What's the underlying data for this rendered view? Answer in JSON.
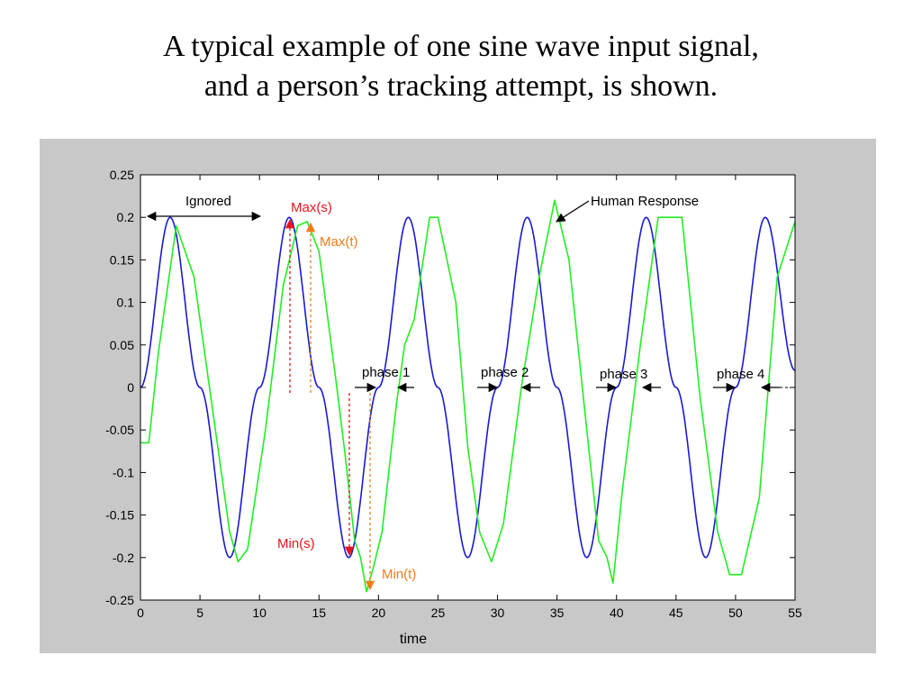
{
  "slide": {
    "title_line1": "A typical example of one sine wave input signal,",
    "title_line2": "and a person’s tracking attempt, is shown."
  },
  "colors": {
    "panel_bg": "#c8c8c8",
    "axes_bg": "#ffffff",
    "signal": "#1a1ad0",
    "response": "#22ee22",
    "red_annotation": "#e8141c",
    "orange_annotation": "#f07c18"
  },
  "chart_data": {
    "type": "line",
    "title": "",
    "xlabel": "time",
    "ylabel": "",
    "xlim": [
      0,
      55
    ],
    "ylim": [
      -0.25,
      0.25
    ],
    "grid": false,
    "x_ticks": [
      0,
      5,
      10,
      15,
      20,
      25,
      30,
      35,
      40,
      45,
      50,
      55
    ],
    "x_tick_labels": [
      "0",
      "5",
      "10",
      "15",
      "20",
      "25",
      "30",
      "35",
      "40",
      "45",
      "50",
      "55"
    ],
    "y_ticks": [
      0.25,
      0.2,
      0.15,
      0.1,
      0.05,
      0,
      -0.05,
      -0.1,
      -0.15,
      -0.2,
      -0.25
    ],
    "y_tick_labels": [
      "0.25",
      "0.2",
      "0.15",
      "0.1",
      "0.05",
      "0",
      "-0.05",
      "-0.1",
      "-0.15",
      "-0.2",
      "-0.25"
    ],
    "series": [
      {
        "color": "#1a1ad0",
        "x": [
          0,
          2.5,
          5,
          7.5,
          10,
          12.5,
          15,
          17.5,
          20,
          22.5,
          25,
          27.5,
          30,
          32.5,
          35,
          37.5,
          40,
          42.5,
          45,
          47.5,
          50,
          52.5,
          55
        ],
        "y": [
          0,
          0.2,
          0,
          -0.2,
          0,
          0.2,
          0,
          -0.2,
          0,
          0.2,
          0,
          -0.2,
          0,
          0.2,
          0,
          -0.2,
          0,
          0.2,
          0,
          -0.2,
          0,
          0.2,
          0.02
        ]
      },
      {
        "color": "#22ee22",
        "x": [
          0,
          0.7,
          1.5,
          3,
          4.5,
          6,
          7.5,
          8.2,
          9,
          10.5,
          12,
          13.2,
          14,
          15,
          16.5,
          17.2,
          18,
          18.5,
          19,
          19.6,
          20.3,
          21.5,
          22.2,
          23,
          24.3,
          25,
          26.5,
          27.5,
          28.5,
          29.5,
          30.5,
          32,
          33.5,
          34.8,
          36,
          37.5,
          38.5,
          39.2,
          39.7,
          40.5,
          42,
          43.5,
          45.5,
          47,
          48.5,
          49.5,
          50.5,
          52,
          53.5,
          55
        ],
        "y": [
          -0.065,
          -0.065,
          0.04,
          0.19,
          0.13,
          -0.02,
          -0.17,
          -0.205,
          -0.19,
          -0.05,
          0.12,
          0.19,
          0.195,
          0.16,
          0.0,
          -0.08,
          -0.18,
          -0.2,
          -0.24,
          -0.21,
          -0.17,
          -0.02,
          0.05,
          0.08,
          0.2,
          0.2,
          0.1,
          -0.07,
          -0.17,
          -0.205,
          -0.16,
          0.0,
          0.13,
          0.22,
          0.15,
          -0.05,
          -0.18,
          -0.2,
          -0.23,
          -0.12,
          0.05,
          0.2,
          0.2,
          -0.01,
          -0.17,
          -0.22,
          -0.22,
          -0.13,
          0.13,
          0.195
        ]
      }
    ],
    "annotations": {
      "ignored": "Ignored",
      "human_response": "Human Response",
      "max_s": "Max(s)",
      "max_t": "Max(t)",
      "min_s": "Min(s)",
      "min_t": "Min(t)",
      "phase1": "phase 1",
      "phase2": "phase 2",
      "phase3": "phase 3",
      "phase4": "phase 4"
    }
  }
}
